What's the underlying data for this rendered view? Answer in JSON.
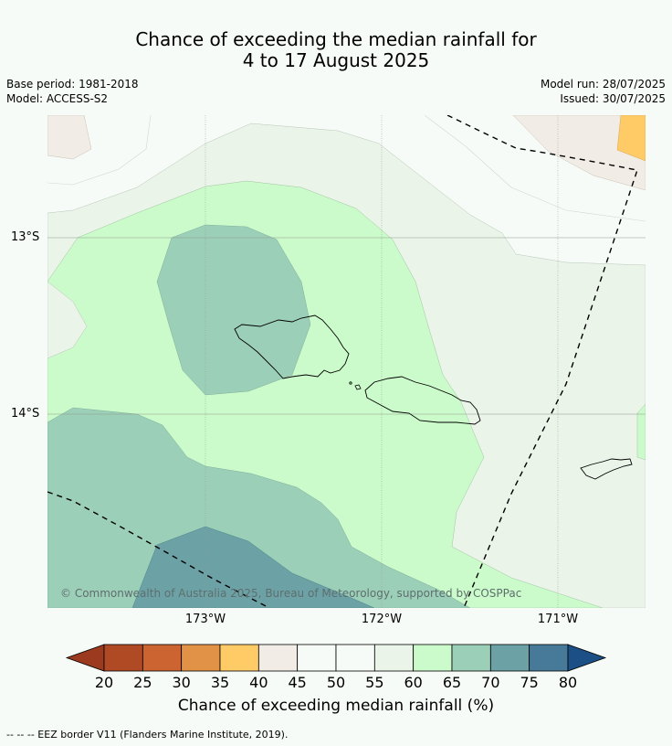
{
  "title_line1": "Chance of exceeding the median rainfall for",
  "title_line2": "4 to 17 August 2025",
  "base_period": "Base period: 1981-2018",
  "model": "Model: ACCESS-S2",
  "model_run": "Model run: 28/07/2025",
  "issued": "Issued: 30/07/2025",
  "copyright": "© Commonwealth of Australia 2025, Bureau of Meteorology, supported by COSPPac",
  "lon_labels": [
    "173°W",
    "172°W",
    "171°W"
  ],
  "lat_labels": [
    "13°S",
    "14°S"
  ],
  "colorbar": {
    "ticks": [
      "20",
      "25",
      "30",
      "35",
      "40",
      "45",
      "50",
      "55",
      "60",
      "65",
      "70",
      "75",
      "80"
    ],
    "colors": [
      "#b04a25",
      "#cc6431",
      "#e29247",
      "#fecb67",
      "#f1ede6",
      "#f7fbf7",
      "#f7fbf7",
      "#eaf4e9",
      "#ccfbcb",
      "#9ccfb8",
      "#6ca2a6",
      "#467a98"
    ],
    "under_color": "#9b3a1e",
    "over_color": "#1b4f86",
    "label": "Chance of exceeding median rainfall (%)"
  },
  "footnote": "--  --  -- EEZ border V11 (Flanders Marine Institute, 2019)."
}
